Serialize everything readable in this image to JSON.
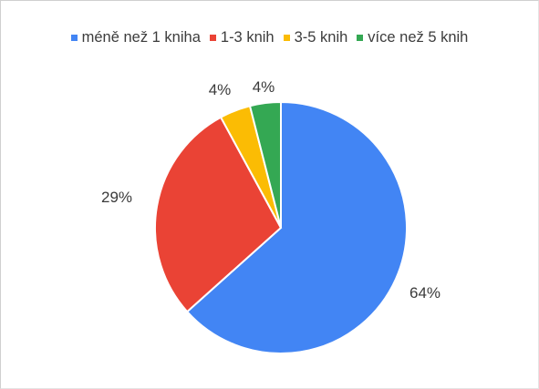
{
  "chart_data": {
    "type": "pie",
    "title": "",
    "legend_position": "top",
    "categories": [
      "méně než 1 kniha",
      "1-3 knih",
      "3-5 knih",
      "více než 5 knih"
    ],
    "values": [
      64,
      29,
      4,
      4
    ],
    "value_labels": [
      "64%",
      "29%",
      "4%",
      "4%"
    ],
    "colors": [
      "#4285f4",
      "#ea4335",
      "#fbbc04",
      "#34a853"
    ],
    "start_angle": "12 o'clock",
    "direction": "clockwise"
  }
}
